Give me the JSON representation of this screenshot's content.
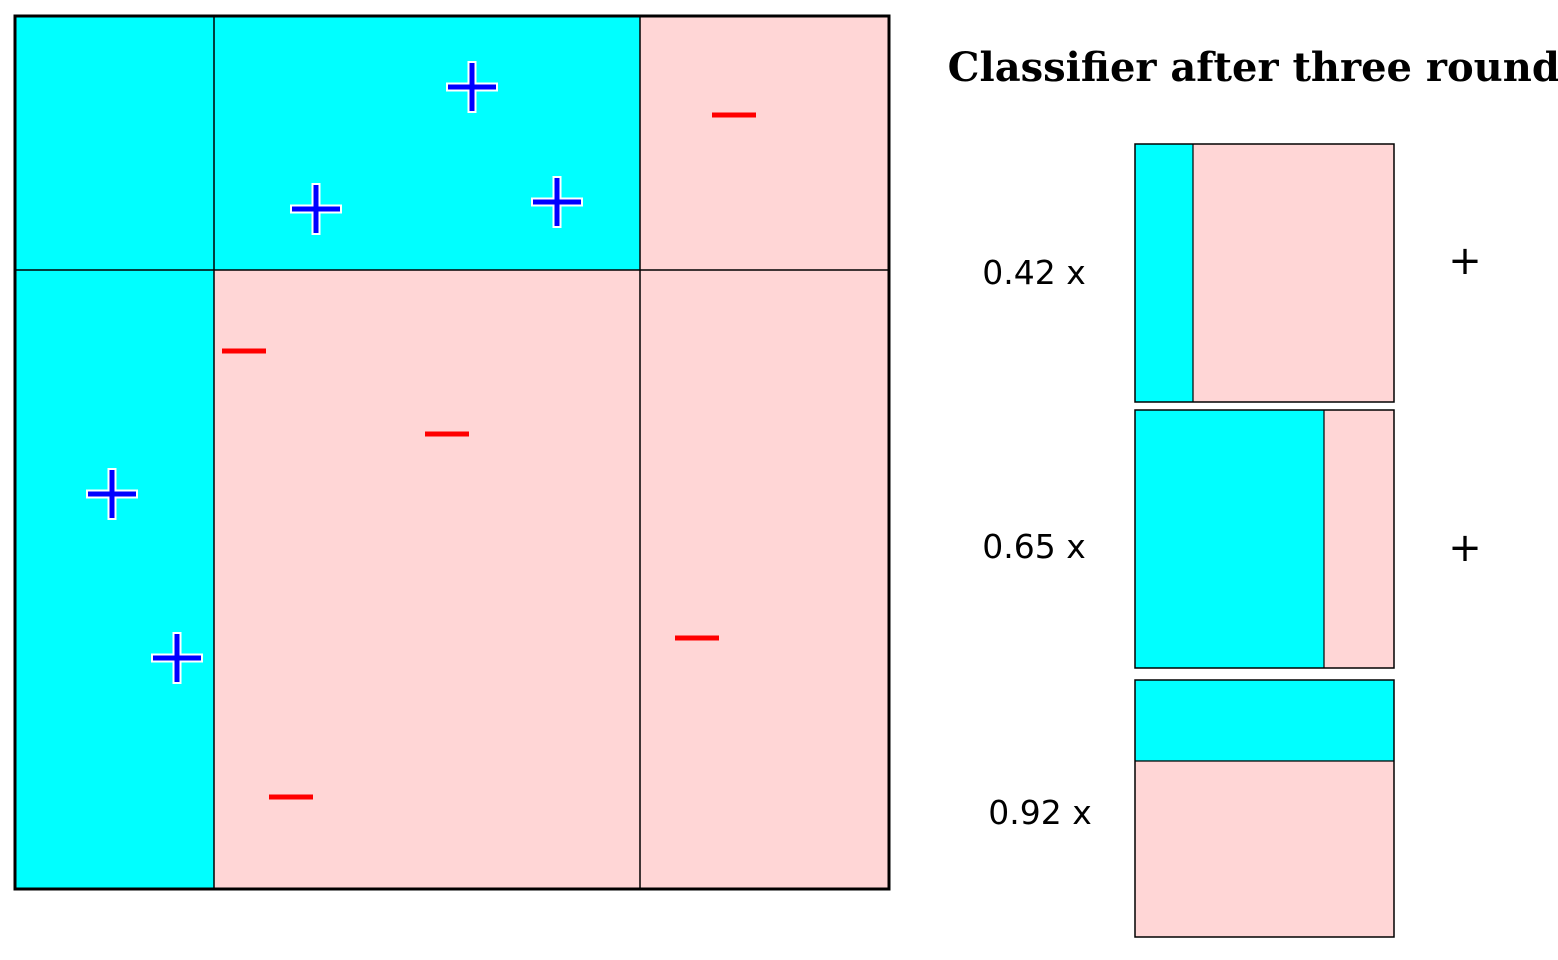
{
  "title": "Classifier after three rounds",
  "colors": {
    "positive_region": "#00ffff",
    "negative_region": "#ffd6d6",
    "plus_marker": "#0000ff",
    "minus_marker": "#ff0000",
    "border": "#000000"
  },
  "weak_classifiers": [
    {
      "weight": "0.42 x",
      "sign": "+",
      "split": "vertical",
      "positive_side": "left"
    },
    {
      "weight": "0.65 x",
      "sign": "+",
      "split": "vertical",
      "positive_side": "left"
    },
    {
      "weight": "0.92 x",
      "sign": "",
      "split": "horizontal",
      "positive_side": "top"
    }
  ],
  "combined_regions": [
    {
      "id": "top-left",
      "label": "+"
    },
    {
      "id": "top-middle",
      "label": "+"
    },
    {
      "id": "top-right",
      "label": "-"
    },
    {
      "id": "bottom-left",
      "label": "+"
    },
    {
      "id": "bottom-middle",
      "label": "-"
    },
    {
      "id": "bottom-right",
      "label": "-"
    }
  ],
  "points": [
    {
      "label": "+",
      "region": "top-middle"
    },
    {
      "label": "+",
      "region": "top-middle"
    },
    {
      "label": "+",
      "region": "top-middle"
    },
    {
      "label": "-",
      "region": "top-right"
    },
    {
      "label": "+",
      "region": "bottom-left"
    },
    {
      "label": "+",
      "region": "bottom-left"
    },
    {
      "label": "-",
      "region": "bottom-middle"
    },
    {
      "label": "-",
      "region": "bottom-middle"
    },
    {
      "label": "-",
      "region": "bottom-middle"
    },
    {
      "label": "-",
      "region": "bottom-right"
    }
  ]
}
